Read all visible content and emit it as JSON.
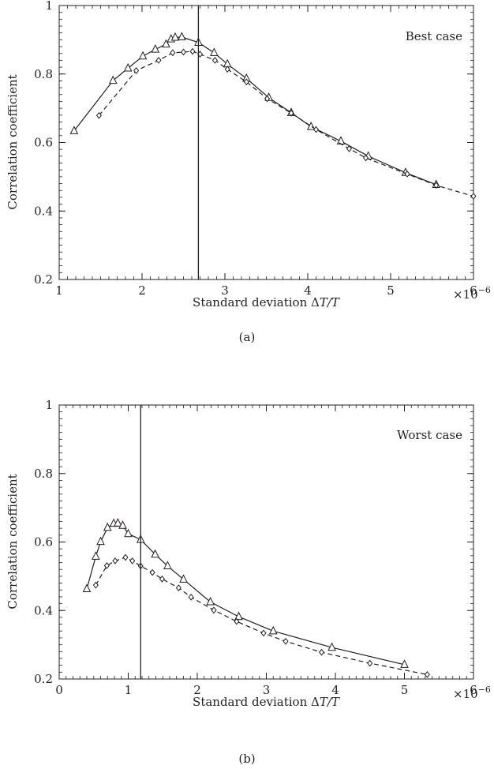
{
  "figure": {
    "multiplier_base": "×10",
    "multiplier_exp": "−6"
  },
  "chart_data": [
    {
      "type": "line",
      "panel_label": "(a)",
      "annotation": "Best case",
      "xlabel_prefix": "Standard deviation Δ",
      "xlabel_var": "T/T",
      "ylabel": "Correlation coefficient",
      "xlim": [
        1,
        6
      ],
      "ylim": [
        0.2,
        1
      ],
      "x_ticks": [
        1,
        2,
        3,
        4,
        5,
        6
      ],
      "x_tick_labels": [
        "1",
        "2",
        "3",
        "4",
        "5",
        "6"
      ],
      "y_ticks": [
        0.2,
        0.4,
        0.6,
        0.8,
        1
      ],
      "y_tick_labels": [
        "0.2",
        "0.4",
        "0.6",
        "0.8",
        "1"
      ],
      "x_minor_step": 0.1,
      "y_minor_step": 0.02,
      "vline_x": 2.68,
      "grid": false,
      "series": [
        {
          "marker": "triangle",
          "line_style": "solid",
          "x": [
            1.18,
            1.65,
            1.83,
            2.01,
            2.16,
            2.29,
            2.35,
            2.4,
            2.48,
            2.68,
            2.87,
            3.03,
            3.26,
            3.53,
            3.8,
            4.04,
            4.4,
            4.73,
            5.18,
            5.55
          ],
          "y": [
            0.634,
            0.781,
            0.817,
            0.852,
            0.872,
            0.887,
            0.902,
            0.907,
            0.908,
            0.892,
            0.862,
            0.829,
            0.787,
            0.731,
            0.687,
            0.646,
            0.604,
            0.56,
            0.512,
            0.477
          ]
        },
        {
          "marker": "diamond",
          "line_style": "dashed",
          "x": [
            1.48,
            1.93,
            2.2,
            2.37,
            2.5,
            2.61,
            2.7,
            2.88,
            3.03,
            3.26,
            3.51,
            3.8,
            4.1,
            4.5,
            4.7,
            5.2,
            5.55,
            6.0
          ],
          "y": [
            0.679,
            0.81,
            0.84,
            0.862,
            0.864,
            0.866,
            0.858,
            0.84,
            0.814,
            0.777,
            0.728,
            0.686,
            0.638,
            0.582,
            0.555,
            0.508,
            0.475,
            0.443
          ]
        }
      ]
    },
    {
      "type": "line",
      "panel_label": "(b)",
      "annotation": "Worst case",
      "xlabel_prefix": "Standard deviation Δ",
      "xlabel_var": "T/T",
      "ylabel": "Correlation coefficient",
      "xlim": [
        0,
        6
      ],
      "ylim": [
        0.2,
        1
      ],
      "x_ticks": [
        0,
        1,
        2,
        3,
        4,
        5,
        6
      ],
      "x_tick_labels": [
        "0",
        "1",
        "2",
        "3",
        "4",
        "5",
        "6"
      ],
      "y_ticks": [
        0.2,
        0.4,
        0.6,
        0.8,
        1
      ],
      "y_tick_labels": [
        "0.2",
        "0.4",
        "0.6",
        "0.8",
        "1"
      ],
      "x_minor_step": 0.1,
      "y_minor_step": 0.02,
      "vline_x": 1.18,
      "grid": false,
      "series": [
        {
          "marker": "triangle",
          "line_style": "solid",
          "x": [
            0.4,
            0.53,
            0.6,
            0.7,
            0.79,
            0.85,
            0.92,
            1.0,
            1.18,
            1.39,
            1.57,
            1.8,
            2.19,
            2.6,
            3.1,
            3.95,
            5.0
          ],
          "y": [
            0.463,
            0.558,
            0.601,
            0.642,
            0.654,
            0.655,
            0.648,
            0.624,
            0.607,
            0.564,
            0.53,
            0.491,
            0.425,
            0.382,
            0.34,
            0.292,
            0.242
          ]
        },
        {
          "marker": "diamond",
          "line_style": "dashed",
          "x": [
            0.53,
            0.69,
            0.81,
            0.96,
            1.06,
            1.18,
            1.35,
            1.49,
            1.73,
            1.91,
            2.24,
            2.57,
            2.96,
            3.28,
            3.8,
            4.5,
            5.33
          ],
          "y": [
            0.474,
            0.531,
            0.545,
            0.555,
            0.545,
            0.53,
            0.511,
            0.492,
            0.466,
            0.439,
            0.401,
            0.368,
            0.334,
            0.31,
            0.278,
            0.246,
            0.213
          ]
        }
      ]
    }
  ]
}
